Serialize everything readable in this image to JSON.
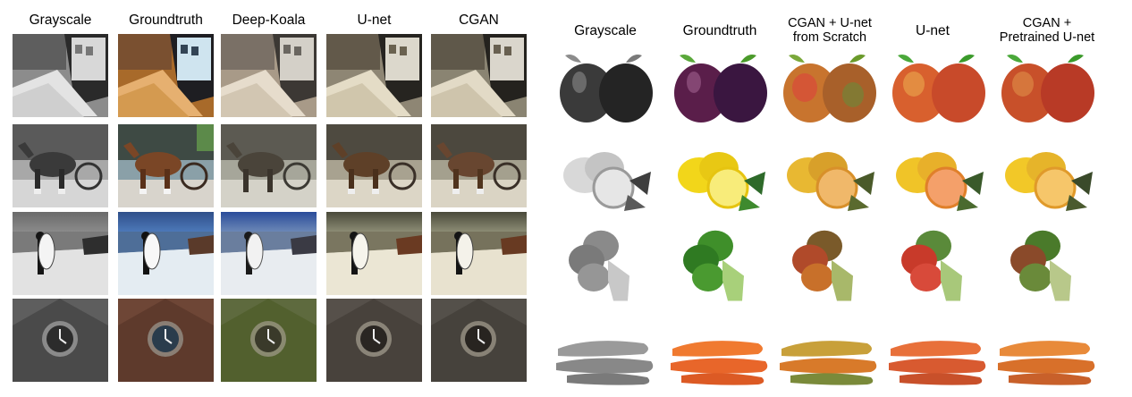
{
  "left_panel": {
    "headers": [
      "Grayscale",
      "Groundtruth",
      "Deep-Koala",
      "U-net",
      "CGAN"
    ]
  },
  "right_panel": {
    "headers": [
      "Grayscale",
      "Groundtruth",
      "CGAN + U-net from Scratch",
      "U-net",
      "CGAN + Pretrained U-net"
    ],
    "header_lines": [
      [
        "Grayscale"
      ],
      [
        "Groundtruth"
      ],
      [
        "CGAN + U-net",
        "from Scratch"
      ],
      [
        "U-net"
      ],
      [
        "CGAN +",
        "Pretrained U-net"
      ]
    ]
  },
  "colors": {
    "gray": "#9a9a9a",
    "groundtruth_warm": "#c48a3c",
    "sky_blue": "#3f67a6",
    "plum": "#5a1f4a",
    "lemon": "#f2d61a",
    "broccoli": "#3f8f2a",
    "carrot": "#e8662a"
  }
}
